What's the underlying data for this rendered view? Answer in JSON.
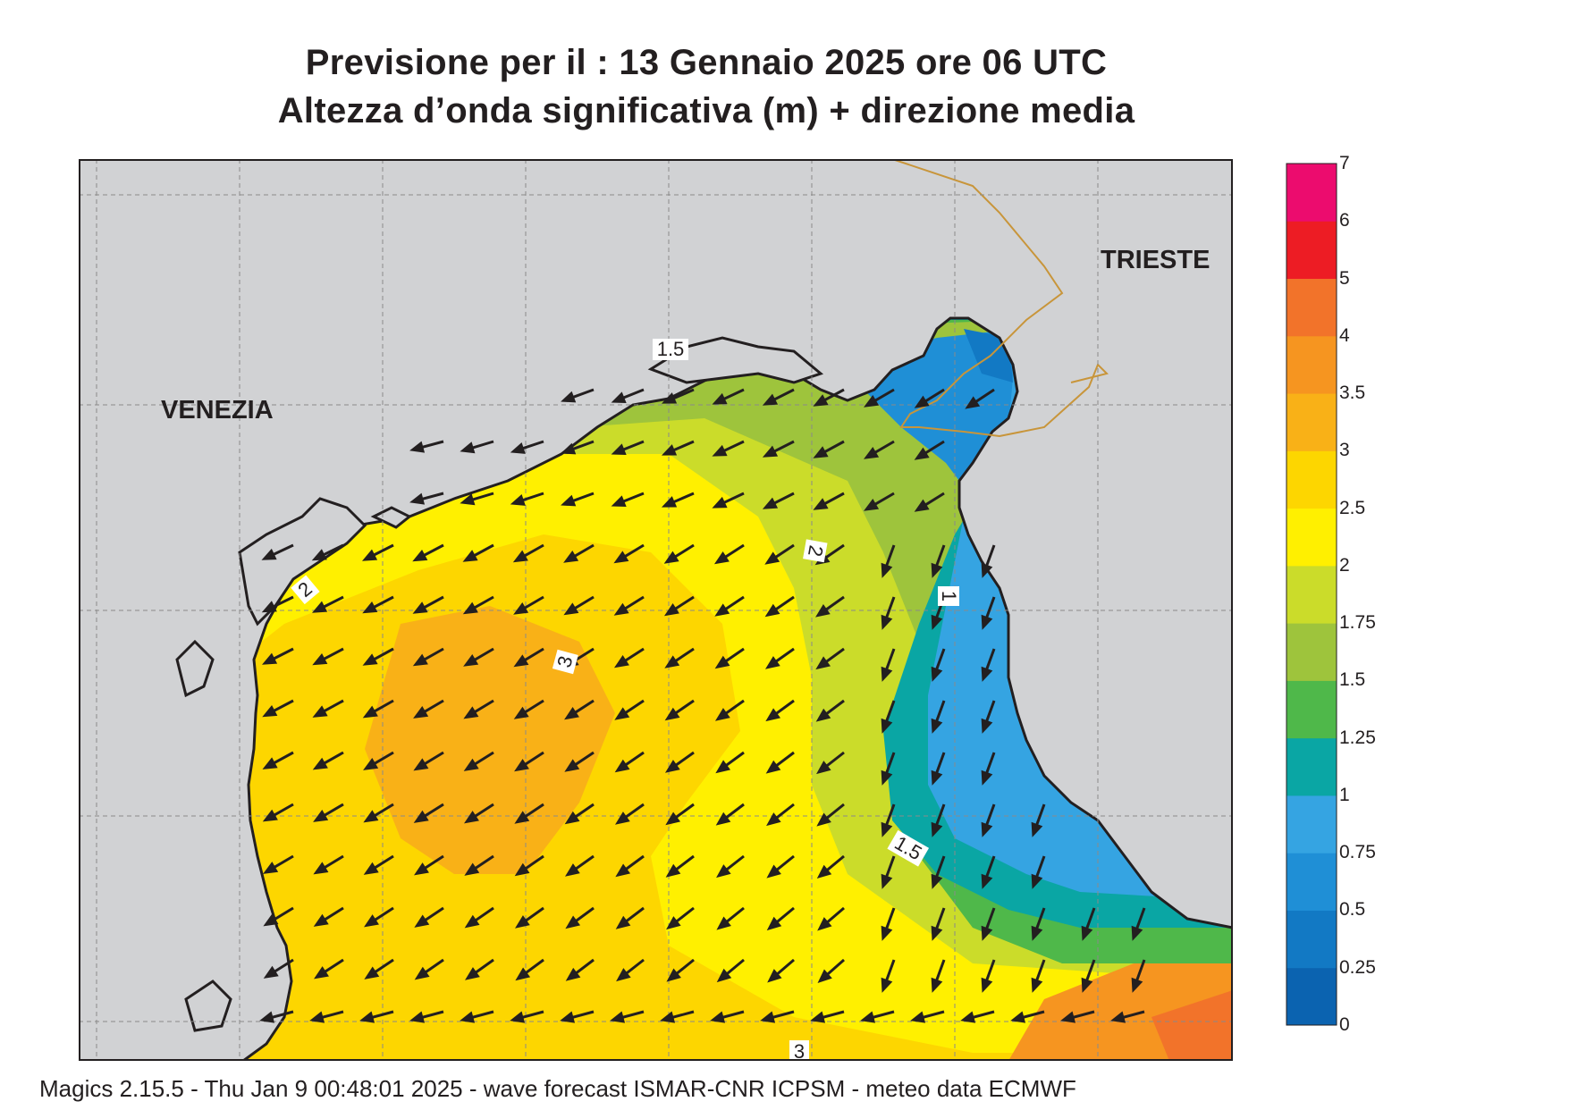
{
  "header": {
    "line1": "Previsione per il  :  13  Gennaio  2025   ore 06 UTC",
    "line2": "Altezza d’onda significativa (m) + direzione media"
  },
  "map": {
    "cities": {
      "venezia": "VENEZIA",
      "trieste": "TRIESTE"
    },
    "contour_labels": {
      "c15a": "1.5",
      "c2a": "2",
      "c1": "1",
      "c3a": "3",
      "c2b": "2",
      "c15b": "1.5",
      "c3b": "3"
    },
    "colors": {
      "land": "#d1d2d4",
      "coast": "#231f20",
      "border": "#c8953a",
      "grid": "#8a8a8a"
    }
  },
  "legend": {
    "levels": [
      "0",
      "0.25",
      "0.5",
      "0.75",
      "1",
      "1.25",
      "1.5",
      "1.75",
      "2",
      "2.5",
      "3",
      "3.5",
      "4",
      "5",
      "6",
      "7"
    ],
    "colors": [
      "#0b63b0",
      "#1279c4",
      "#1f8fd6",
      "#35a4e2",
      "#0aa6a4",
      "#4fb84a",
      "#9ec43c",
      "#cbdc2a",
      "#fff000",
      "#fdd600",
      "#f9b117",
      "#f69520",
      "#f2732a",
      "#ed1c24",
      "#ec0c6e"
    ]
  },
  "footer": {
    "text": "Magics 2.15.5 - Thu Jan  9 00:48:01 2025 - wave forecast  ISMAR-CNR  ICPSM - meteo data   ECMWF"
  }
}
